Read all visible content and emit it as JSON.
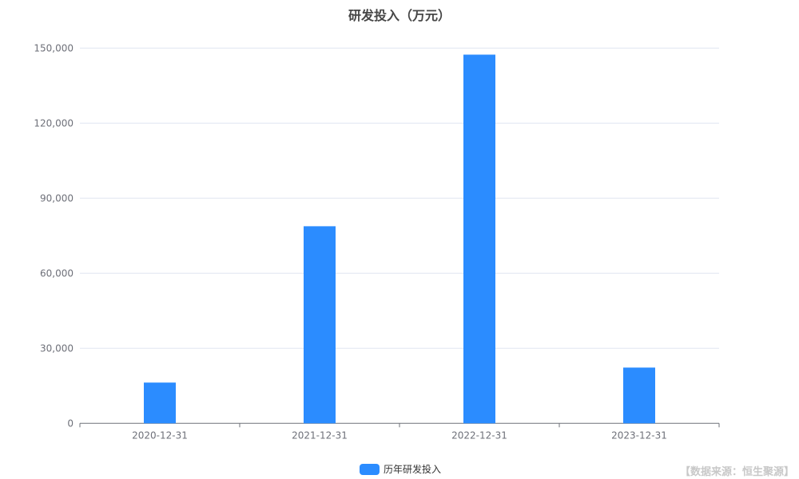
{
  "chart_data": {
    "type": "bar",
    "title": "研发投入（万元）",
    "categories": [
      "2020-12-31",
      "2021-12-31",
      "2022-12-31",
      "2023-12-31"
    ],
    "series": [
      {
        "name": "历年研发投入",
        "values": [
          16300,
          78800,
          147400,
          22300
        ],
        "color": "#2b8cff"
      }
    ],
    "ylim": [
      0,
      150000
    ],
    "yticks": [
      0,
      30000,
      60000,
      90000,
      120000,
      150000
    ],
    "ytick_labels": [
      "0",
      "30,000",
      "60,000",
      "90,000",
      "120,000",
      "150,000"
    ],
    "grid": true,
    "legend": "bottom-center"
  },
  "source": "【数据来源：恒生聚源】"
}
